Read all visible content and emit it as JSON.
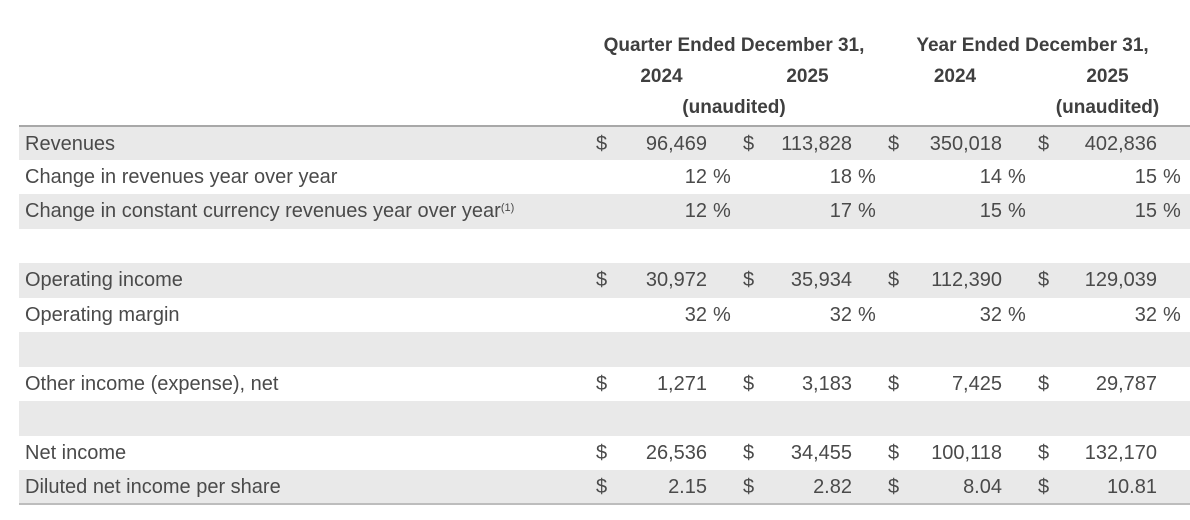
{
  "colors": {
    "row_shade": "#e9e9e9",
    "text": "#4a4a4a",
    "header_text": "#3f3f3f",
    "table_top_rule": "#a8a8a8",
    "table_bottom_rule": "#bdbdbd"
  },
  "table": {
    "header": {
      "quarter_group": "Quarter Ended December 31,",
      "year_group": "Year Ended December 31,",
      "quarter_cols": [
        "2024",
        "2025"
      ],
      "year_cols": [
        "2024",
        "2025"
      ],
      "quarter_unaudited": "(unaudited)",
      "year_unaudited": "(unaudited)"
    },
    "rows": [
      {
        "label": "Revenues",
        "sup": "",
        "shaded": true,
        "spacer": false,
        "cells": [
          {
            "pre": "$",
            "val": "96,469",
            "suf": ""
          },
          {
            "pre": "$",
            "val": "113,828",
            "suf": ""
          },
          {
            "pre": "$",
            "val": "350,018",
            "suf": ""
          },
          {
            "pre": "$",
            "val": "402,836",
            "suf": ""
          }
        ]
      },
      {
        "label": "Change in revenues year over year",
        "sup": "",
        "shaded": false,
        "spacer": false,
        "cells": [
          {
            "pre": "",
            "val": "12",
            "suf": "%"
          },
          {
            "pre": "",
            "val": "18",
            "suf": "%"
          },
          {
            "pre": "",
            "val": "14",
            "suf": "%"
          },
          {
            "pre": "",
            "val": "15",
            "suf": "%"
          }
        ]
      },
      {
        "label": "Change in constant currency revenues year over year",
        "sup": "(1)",
        "shaded": true,
        "spacer": false,
        "cells": [
          {
            "pre": "",
            "val": "12",
            "suf": "%"
          },
          {
            "pre": "",
            "val": "17",
            "suf": "%"
          },
          {
            "pre": "",
            "val": "15",
            "suf": "%"
          },
          {
            "pre": "",
            "val": "15",
            "suf": "%"
          }
        ]
      },
      {
        "label": "",
        "sup": "",
        "shaded": false,
        "spacer": true,
        "cells": [
          {
            "pre": "",
            "val": "",
            "suf": ""
          },
          {
            "pre": "",
            "val": "",
            "suf": ""
          },
          {
            "pre": "",
            "val": "",
            "suf": ""
          },
          {
            "pre": "",
            "val": "",
            "suf": ""
          }
        ]
      },
      {
        "label": "Operating income",
        "sup": "",
        "shaded": true,
        "spacer": false,
        "cells": [
          {
            "pre": "$",
            "val": "30,972",
            "suf": ""
          },
          {
            "pre": "$",
            "val": "35,934",
            "suf": ""
          },
          {
            "pre": "$",
            "val": "112,390",
            "suf": ""
          },
          {
            "pre": "$",
            "val": "129,039",
            "suf": ""
          }
        ]
      },
      {
        "label": "Operating margin",
        "sup": "",
        "shaded": false,
        "spacer": false,
        "cells": [
          {
            "pre": "",
            "val": "32",
            "suf": "%"
          },
          {
            "pre": "",
            "val": "32",
            "suf": "%"
          },
          {
            "pre": "",
            "val": "32",
            "suf": "%"
          },
          {
            "pre": "",
            "val": "32",
            "suf": "%"
          }
        ]
      },
      {
        "label": "",
        "sup": "",
        "shaded": true,
        "spacer": true,
        "cells": [
          {
            "pre": "",
            "val": "",
            "suf": ""
          },
          {
            "pre": "",
            "val": "",
            "suf": ""
          },
          {
            "pre": "",
            "val": "",
            "suf": ""
          },
          {
            "pre": "",
            "val": "",
            "suf": ""
          }
        ]
      },
      {
        "label": "Other income (expense), net",
        "sup": "",
        "shaded": false,
        "spacer": false,
        "cells": [
          {
            "pre": "$",
            "val": "1,271",
            "suf": ""
          },
          {
            "pre": "$",
            "val": "3,183",
            "suf": ""
          },
          {
            "pre": "$",
            "val": "7,425",
            "suf": ""
          },
          {
            "pre": "$",
            "val": "29,787",
            "suf": ""
          }
        ]
      },
      {
        "label": "",
        "sup": "",
        "shaded": true,
        "spacer": true,
        "cells": [
          {
            "pre": "",
            "val": "",
            "suf": ""
          },
          {
            "pre": "",
            "val": "",
            "suf": ""
          },
          {
            "pre": "",
            "val": "",
            "suf": ""
          },
          {
            "pre": "",
            "val": "",
            "suf": ""
          }
        ]
      },
      {
        "label": "Net income",
        "sup": "",
        "shaded": false,
        "spacer": false,
        "cells": [
          {
            "pre": "$",
            "val": "26,536",
            "suf": ""
          },
          {
            "pre": "$",
            "val": "34,455",
            "suf": ""
          },
          {
            "pre": "$",
            "val": "100,118",
            "suf": ""
          },
          {
            "pre": "$",
            "val": "132,170",
            "suf": ""
          }
        ]
      },
      {
        "label": "Diluted net income per share",
        "sup": "",
        "shaded": true,
        "spacer": false,
        "cells": [
          {
            "pre": "$",
            "val": "2.15",
            "suf": ""
          },
          {
            "pre": "$",
            "val": "2.82",
            "suf": ""
          },
          {
            "pre": "$",
            "val": "8.04",
            "suf": ""
          },
          {
            "pre": "$",
            "val": "10.81",
            "suf": ""
          }
        ]
      }
    ]
  }
}
